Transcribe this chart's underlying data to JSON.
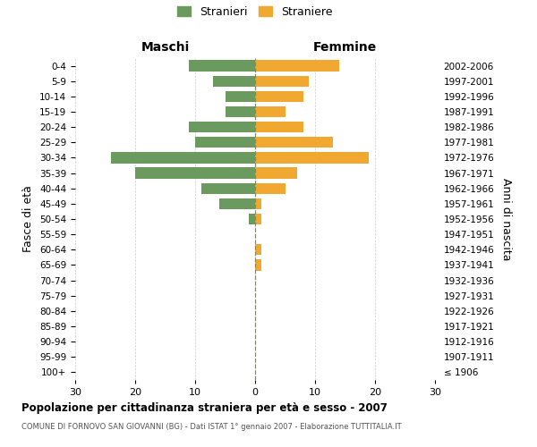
{
  "age_groups": [
    "100+",
    "95-99",
    "90-94",
    "85-89",
    "80-84",
    "75-79",
    "70-74",
    "65-69",
    "60-64",
    "55-59",
    "50-54",
    "45-49",
    "40-44",
    "35-39",
    "30-34",
    "25-29",
    "20-24",
    "15-19",
    "10-14",
    "5-9",
    "0-4"
  ],
  "birth_years": [
    "≤ 1906",
    "1907-1911",
    "1912-1916",
    "1917-1921",
    "1922-1926",
    "1927-1931",
    "1932-1936",
    "1937-1941",
    "1942-1946",
    "1947-1951",
    "1952-1956",
    "1957-1961",
    "1962-1966",
    "1967-1971",
    "1972-1976",
    "1977-1981",
    "1982-1986",
    "1987-1991",
    "1992-1996",
    "1997-2001",
    "2002-2006"
  ],
  "males": [
    0,
    0,
    0,
    0,
    0,
    0,
    0,
    0,
    0,
    0,
    1,
    6,
    9,
    20,
    24,
    10,
    11,
    5,
    5,
    7,
    11
  ],
  "females": [
    0,
    0,
    0,
    0,
    0,
    0,
    0,
    1,
    1,
    0,
    1,
    1,
    5,
    7,
    19,
    13,
    8,
    5,
    8,
    9,
    14
  ],
  "male_color": "#6b9a5e",
  "female_color": "#f0a830",
  "center_line_color": "#888855",
  "background_color": "#ffffff",
  "grid_color": "#cccccc",
  "xlim": 30,
  "title": "Popolazione per cittadinanza straniera per età e sesso - 2007",
  "subtitle": "COMUNE DI FORNOVO SAN GIOVANNI (BG) - Dati ISTAT 1° gennaio 2007 - Elaborazione TUTTITALIA.IT",
  "ylabel_left": "Fasce di età",
  "ylabel_right": "Anni di nascita",
  "header_left": "Maschi",
  "header_right": "Femmine",
  "legend_male": "Stranieri",
  "legend_female": "Straniere"
}
